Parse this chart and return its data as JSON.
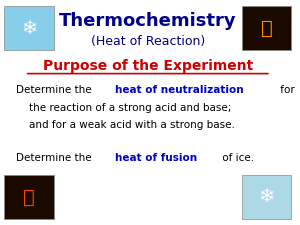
{
  "background_color": "#ffffff",
  "title_text": "Thermochemistry",
  "subtitle_text": "(Heat of Reaction)",
  "title_color": "#00008B",
  "subtitle_color": "#000080",
  "section_header": "Purpose of the Experiment",
  "section_header_color": "#CC0000",
  "body_lines": [
    {
      "parts": [
        {
          "text": "Determine the ",
          "bold": false,
          "color": "#000000"
        },
        {
          "text": "heat of neutralization",
          "bold": true,
          "color": "#0000CC"
        },
        {
          "text": " for",
          "bold": false,
          "color": "#000000"
        }
      ]
    },
    {
      "parts": [
        {
          "text": "    the reaction of a strong acid and base;",
          "bold": false,
          "color": "#000000"
        }
      ]
    },
    {
      "parts": [
        {
          "text": "    and for a weak acid with a strong base.",
          "bold": false,
          "color": "#000000"
        }
      ]
    },
    {
      "parts": [
        {
          "text": "",
          "bold": false,
          "color": "#000000"
        }
      ]
    },
    {
      "parts": [
        {
          "text": "Determine the ",
          "bold": false,
          "color": "#000000"
        },
        {
          "text": "heat of fusion",
          "bold": true,
          "color": "#0000CC"
        },
        {
          "text": " of ice.",
          "bold": false,
          "color": "#000000"
        }
      ]
    }
  ],
  "figsize": [
    3.0,
    2.25
  ],
  "dpi": 100,
  "top_left_img_color": "#87CEEB",
  "top_right_img_color": "#FF8C00",
  "bottom_left_img_color": "#FF4500",
  "bottom_right_img_color": "#ADD8E6"
}
